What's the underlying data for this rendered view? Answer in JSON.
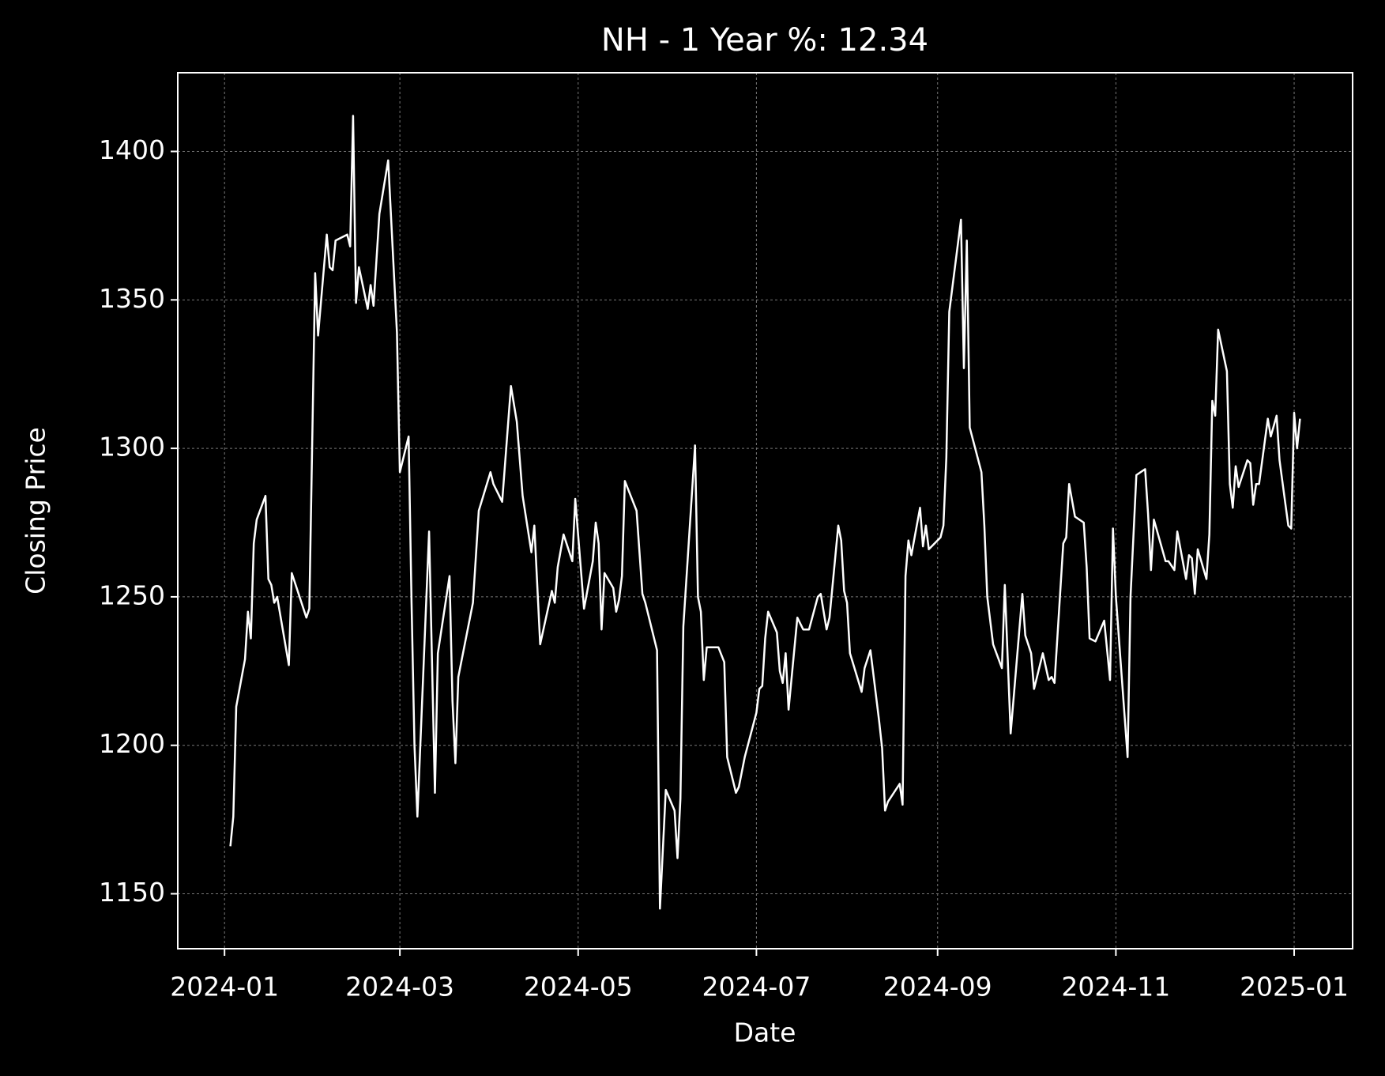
{
  "chart_data": {
    "type": "line",
    "title": "NH - 1 Year %: 12.34",
    "x_label": "Date",
    "y_label": "Closing Price",
    "color": "#ffffff",
    "background": "#000000",
    "grid": true,
    "xlim": [
      "2023-12-16",
      "2025-01-21"
    ],
    "ylim": [
      1131.5,
      1426.5
    ],
    "xticks": [
      {
        "value": "2024-01-01",
        "label": "2024-01"
      },
      {
        "value": "2024-03-01",
        "label": "2024-03"
      },
      {
        "value": "2024-05-01",
        "label": "2024-05"
      },
      {
        "value": "2024-07-01",
        "label": "2024-07"
      },
      {
        "value": "2024-09-01",
        "label": "2024-09"
      },
      {
        "value": "2024-11-01",
        "label": "2024-11"
      },
      {
        "value": "2025-01-01",
        "label": "2025-01"
      }
    ],
    "yticks": [
      1150,
      1200,
      1250,
      1300,
      1350,
      1400
    ],
    "x": [
      "2024-01-03",
      "2024-01-04",
      "2024-01-05",
      "2024-01-08",
      "2024-01-09",
      "2024-01-10",
      "2024-01-11",
      "2024-01-12",
      "2024-01-15",
      "2024-01-16",
      "2024-01-17",
      "2024-01-18",
      "2024-01-19",
      "2024-01-23",
      "2024-01-24",
      "2024-01-29",
      "2024-01-30",
      "2024-02-01",
      "2024-02-02",
      "2024-02-05",
      "2024-02-06",
      "2024-02-07",
      "2024-02-08",
      "2024-02-12",
      "2024-02-13",
      "2024-02-14",
      "2024-02-15",
      "2024-02-16",
      "2024-02-19",
      "2024-02-20",
      "2024-02-21",
      "2024-02-23",
      "2024-02-26",
      "2024-02-29",
      "2024-03-01",
      "2024-03-04",
      "2024-03-05",
      "2024-03-06",
      "2024-03-07",
      "2024-03-11",
      "2024-03-13",
      "2024-03-14",
      "2024-03-18",
      "2024-03-19",
      "2024-03-20",
      "2024-03-21",
      "2024-03-26",
      "2024-03-28",
      "2024-04-01",
      "2024-04-02",
      "2024-04-05",
      "2024-04-08",
      "2024-04-10",
      "2024-04-12",
      "2024-04-15",
      "2024-04-16",
      "2024-04-18",
      "2024-04-22",
      "2024-04-23",
      "2024-04-24",
      "2024-04-26",
      "2024-04-29",
      "2024-04-30",
      "2024-05-03",
      "2024-05-06",
      "2024-05-07",
      "2024-05-08",
      "2024-05-09",
      "2024-05-10",
      "2024-05-13",
      "2024-05-14",
      "2024-05-15",
      "2024-05-16",
      "2024-05-17",
      "2024-05-21",
      "2024-05-23",
      "2024-05-24",
      "2024-05-28",
      "2024-05-29",
      "2024-05-31",
      "2024-06-03",
      "2024-06-04",
      "2024-06-05",
      "2024-06-06",
      "2024-06-10",
      "2024-06-11",
      "2024-06-12",
      "2024-06-13",
      "2024-06-14",
      "2024-06-18",
      "2024-06-20",
      "2024-06-21",
      "2024-06-24",
      "2024-06-25",
      "2024-06-27",
      "2024-07-01",
      "2024-07-02",
      "2024-07-03",
      "2024-07-04",
      "2024-07-05",
      "2024-07-08",
      "2024-07-09",
      "2024-07-10",
      "2024-07-11",
      "2024-07-12",
      "2024-07-15",
      "2024-07-17",
      "2024-07-19",
      "2024-07-22",
      "2024-07-23",
      "2024-07-25",
      "2024-07-26",
      "2024-07-29",
      "2024-07-30",
      "2024-07-31",
      "2024-08-01",
      "2024-08-02",
      "2024-08-06",
      "2024-08-07",
      "2024-08-09",
      "2024-08-12",
      "2024-08-13",
      "2024-08-14",
      "2024-08-15",
      "2024-08-19",
      "2024-08-20",
      "2024-08-21",
      "2024-08-22",
      "2024-08-23",
      "2024-08-26",
      "2024-08-27",
      "2024-08-28",
      "2024-08-29",
      "2024-09-02",
      "2024-09-03",
      "2024-09-04",
      "2024-09-05",
      "2024-09-09",
      "2024-09-10",
      "2024-09-11",
      "2024-09-12",
      "2024-09-16",
      "2024-09-17",
      "2024-09-18",
      "2024-09-20",
      "2024-09-23",
      "2024-09-24",
      "2024-09-26",
      "2024-09-30",
      "2024-10-01",
      "2024-10-03",
      "2024-10-04",
      "2024-10-07",
      "2024-10-09",
      "2024-10-10",
      "2024-10-11",
      "2024-10-14",
      "2024-10-15",
      "2024-10-16",
      "2024-10-18",
      "2024-10-21",
      "2024-10-22",
      "2024-10-23",
      "2024-10-25",
      "2024-10-28",
      "2024-10-30",
      "2024-10-31",
      "2024-11-01",
      "2024-11-05",
      "2024-11-06",
      "2024-11-08",
      "2024-11-11",
      "2024-11-12",
      "2024-11-13",
      "2024-11-14",
      "2024-11-18",
      "2024-11-19",
      "2024-11-21",
      "2024-11-22",
      "2024-11-25",
      "2024-11-26",
      "2024-11-27",
      "2024-11-28",
      "2024-11-29",
      "2024-12-02",
      "2024-12-03",
      "2024-12-04",
      "2024-12-05",
      "2024-12-06",
      "2024-12-09",
      "2024-12-10",
      "2024-12-11",
      "2024-12-12",
      "2024-12-13",
      "2024-12-16",
      "2024-12-17",
      "2024-12-18",
      "2024-12-19",
      "2024-12-20",
      "2024-12-23",
      "2024-12-24",
      "2024-12-26",
      "2024-12-27",
      "2024-12-30",
      "2024-12-31",
      "2025-01-01",
      "2025-01-02",
      "2025-01-03"
    ],
    "values": [
      1166,
      1176,
      1213,
      1229,
      1245,
      1236,
      1268,
      1276,
      1284,
      1256,
      1254,
      1248,
      1250,
      1227,
      1258,
      1243,
      1246,
      1359,
      1338,
      1372,
      1361,
      1360,
      1370,
      1372,
      1368,
      1412,
      1349,
      1361,
      1347,
      1355,
      1348,
      1379,
      1397,
      1339,
      1292,
      1304,
      1248,
      1200,
      1176,
      1272,
      1184,
      1231,
      1257,
      1215,
      1194,
      1223,
      1248,
      1279,
      1292,
      1288,
      1282,
      1321,
      1309,
      1284,
      1265,
      1274,
      1234,
      1252,
      1248,
      1260,
      1271,
      1262,
      1283,
      1246,
      1262,
      1275,
      1268,
      1239,
      1258,
      1253,
      1245,
      1249,
      1257,
      1289,
      1279,
      1251,
      1248,
      1232,
      1145,
      1185,
      1178,
      1162,
      1182,
      1240,
      1301,
      1250,
      1245,
      1222,
      1233,
      1233,
      1228,
      1196,
      1184,
      1186,
      1196,
      1211,
      1219,
      1220,
      1236,
      1245,
      1238,
      1225,
      1221,
      1231,
      1212,
      1243,
      1239,
      1239,
      1250,
      1251,
      1239,
      1243,
      1274,
      1269,
      1252,
      1248,
      1231,
      1218,
      1226,
      1232,
      1208,
      1199,
      1178,
      1181,
      1187,
      1180,
      1257,
      1269,
      1264,
      1280,
      1267,
      1274,
      1266,
      1270,
      1274,
      1297,
      1346,
      1377,
      1327,
      1370,
      1307,
      1292,
      1274,
      1250,
      1234,
      1226,
      1254,
      1204,
      1251,
      1237,
      1231,
      1219,
      1231,
      1222,
      1223,
      1221,
      1268,
      1270,
      1288,
      1277,
      1275,
      1260,
      1236,
      1235,
      1242,
      1222,
      1273,
      1250,
      1196,
      1250,
      1291,
      1293,
      1278,
      1259,
      1276,
      1262,
      1262,
      1259,
      1272,
      1256,
      1264,
      1263,
      1251,
      1266,
      1256,
      1271,
      1316,
      1311,
      1340,
      1326,
      1288,
      1280,
      1294,
      1287,
      1296,
      1295,
      1281,
      1288,
      1288,
      1310,
      1304,
      1311,
      1296,
      1274,
      1273,
      1312,
      1300,
      1310
    ]
  }
}
